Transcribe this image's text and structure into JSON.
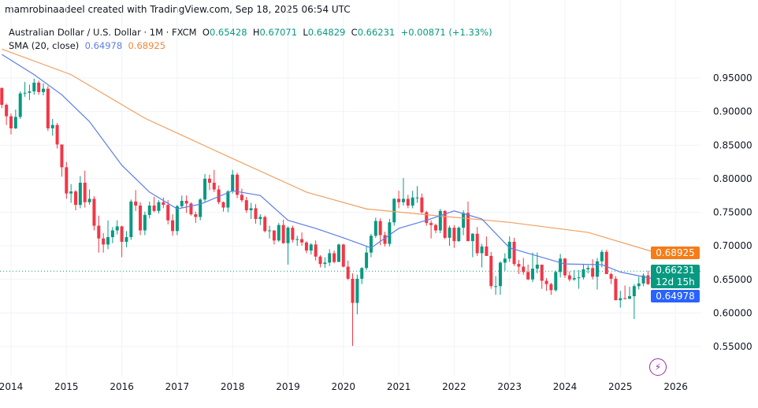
{
  "credit": "mamrobinaadeel created with TradingView.com, Sep 18, 2025 06:54 UTC",
  "legend": {
    "symbol": "Australian Dollar / U.S. Dollar · 1M · FXCM",
    "o_label": "O",
    "o": "0.65428",
    "h_label": "H",
    "h": "0.67071",
    "l_label": "L",
    "l": "0.64829",
    "c_label": "C",
    "c": "0.66231",
    "change": "+0.00871 (+1.33%)",
    "sma_label": "SMA (20, close)",
    "sma_blue": "0.64978",
    "sma_orange": "0.68925"
  },
  "badges": {
    "orange": "0.68925",
    "price": "0.66231",
    "countdown": "12d 15h",
    "blue": "0.64978"
  },
  "colors": {
    "up": "#089981",
    "down": "#f23645",
    "sma_blue": "#5b7fe6",
    "sma_orange": "#f0a060",
    "price_badge": "#089981",
    "orange_badge": "#f57c17",
    "blue_badge": "#2962ff",
    "accent": "#9c27b0"
  },
  "icons": {
    "bolt": "lightning-icon"
  },
  "chart_data": {
    "type": "candlestick",
    "interval": "1M",
    "ylim": [
      0.53,
      0.99
    ],
    "yticks": [
      "0.95000",
      "0.90000",
      "0.85000",
      "0.80000",
      "0.75000",
      "0.70000",
      "0.65000",
      "0.60000",
      "0.55000"
    ],
    "xticks": [
      "2014",
      "2015",
      "2016",
      "2017",
      "2018",
      "2019",
      "2020",
      "2021",
      "2022",
      "2023",
      "2024",
      "2025",
      "2026"
    ],
    "start": "2013-11",
    "first_open": 0.935,
    "candles_hlc": [
      [
        0.936,
        0.905,
        0.91
      ],
      [
        0.912,
        0.88,
        0.893
      ],
      [
        0.897,
        0.866,
        0.875
      ],
      [
        0.903,
        0.874,
        0.892
      ],
      [
        0.93,
        0.889,
        0.927
      ],
      [
        0.944,
        0.922,
        0.928
      ],
      [
        0.94,
        0.917,
        0.93
      ],
      [
        0.949,
        0.925,
        0.943
      ],
      [
        0.946,
        0.925,
        0.929
      ],
      [
        0.942,
        0.924,
        0.934
      ],
      [
        0.938,
        0.871,
        0.875
      ],
      [
        0.889,
        0.864,
        0.88
      ],
      [
        0.883,
        0.845,
        0.851
      ],
      [
        0.837,
        0.803,
        0.817
      ],
      [
        0.825,
        0.77,
        0.778
      ],
      [
        0.792,
        0.764,
        0.781
      ],
      [
        0.783,
        0.753,
        0.761
      ],
      [
        0.804,
        0.756,
        0.794
      ],
      [
        0.812,
        0.757,
        0.765
      ],
      [
        0.784,
        0.761,
        0.77
      ],
      [
        0.774,
        0.723,
        0.73
      ],
      [
        0.745,
        0.69,
        0.711
      ],
      [
        0.719,
        0.69,
        0.702
      ],
      [
        0.738,
        0.695,
        0.713
      ],
      [
        0.728,
        0.704,
        0.723
      ],
      [
        0.738,
        0.717,
        0.729
      ],
      [
        0.73,
        0.683,
        0.706
      ],
      [
        0.722,
        0.698,
        0.713
      ],
      [
        0.769,
        0.709,
        0.766
      ],
      [
        0.783,
        0.752,
        0.76
      ],
      [
        0.765,
        0.716,
        0.723
      ],
      [
        0.751,
        0.716,
        0.746
      ],
      [
        0.766,
        0.741,
        0.76
      ],
      [
        0.773,
        0.75,
        0.752
      ],
      [
        0.768,
        0.748,
        0.765
      ],
      [
        0.772,
        0.756,
        0.761
      ],
      [
        0.768,
        0.732,
        0.738
      ],
      [
        0.747,
        0.715,
        0.722
      ],
      [
        0.761,
        0.716,
        0.759
      ],
      [
        0.775,
        0.756,
        0.767
      ],
      [
        0.775,
        0.749,
        0.763
      ],
      [
        0.765,
        0.745,
        0.747
      ],
      [
        0.751,
        0.734,
        0.743
      ],
      [
        0.771,
        0.738,
        0.769
      ],
      [
        0.807,
        0.764,
        0.8
      ],
      [
        0.806,
        0.783,
        0.794
      ],
      [
        0.813,
        0.78,
        0.784
      ],
      [
        0.79,
        0.762,
        0.765
      ],
      [
        0.766,
        0.751,
        0.757
      ],
      [
        0.783,
        0.75,
        0.781
      ],
      [
        0.813,
        0.778,
        0.806
      ],
      [
        0.809,
        0.771,
        0.776
      ],
      [
        0.785,
        0.765,
        0.768
      ],
      [
        0.773,
        0.749,
        0.753
      ],
      [
        0.764,
        0.74,
        0.756
      ],
      [
        0.762,
        0.733,
        0.74
      ],
      [
        0.747,
        0.731,
        0.743
      ],
      [
        0.745,
        0.72,
        0.722
      ],
      [
        0.73,
        0.711,
        0.723
      ],
      [
        0.722,
        0.702,
        0.708
      ],
      [
        0.734,
        0.706,
        0.731
      ],
      [
        0.739,
        0.703,
        0.704
      ],
      [
        0.729,
        0.672,
        0.727
      ],
      [
        0.73,
        0.705,
        0.709
      ],
      [
        0.715,
        0.7,
        0.71
      ],
      [
        0.72,
        0.7,
        0.705
      ],
      [
        0.707,
        0.689,
        0.693
      ],
      [
        0.704,
        0.687,
        0.702
      ],
      [
        0.708,
        0.678,
        0.684
      ],
      [
        0.686,
        0.668,
        0.673
      ],
      [
        0.683,
        0.667,
        0.675
      ],
      [
        0.695,
        0.67,
        0.689
      ],
      [
        0.693,
        0.674,
        0.676
      ],
      [
        0.703,
        0.676,
        0.702
      ],
      [
        0.703,
        0.668,
        0.669
      ],
      [
        0.678,
        0.649,
        0.651
      ],
      [
        0.659,
        0.551,
        0.615
      ],
      [
        0.657,
        0.598,
        0.651
      ],
      [
        0.668,
        0.643,
        0.667
      ],
      [
        0.7,
        0.664,
        0.69
      ],
      [
        0.718,
        0.683,
        0.715
      ],
      [
        0.742,
        0.712,
        0.737
      ],
      [
        0.741,
        0.701,
        0.716
      ],
      [
        0.721,
        0.699,
        0.703
      ],
      [
        0.74,
        0.699,
        0.735
      ],
      [
        0.771,
        0.73,
        0.77
      ],
      [
        0.782,
        0.756,
        0.765
      ],
      [
        0.801,
        0.76,
        0.77
      ],
      [
        0.776,
        0.756,
        0.76
      ],
      [
        0.782,
        0.756,
        0.772
      ],
      [
        0.789,
        0.764,
        0.772
      ],
      [
        0.778,
        0.748,
        0.75
      ],
      [
        0.752,
        0.73,
        0.734
      ],
      [
        0.738,
        0.711,
        0.731
      ],
      [
        0.733,
        0.719,
        0.723
      ],
      [
        0.755,
        0.719,
        0.752
      ],
      [
        0.753,
        0.71,
        0.712
      ],
      [
        0.73,
        0.7,
        0.727
      ],
      [
        0.731,
        0.697,
        0.707
      ],
      [
        0.729,
        0.706,
        0.727
      ],
      [
        0.753,
        0.716,
        0.749
      ],
      [
        0.766,
        0.707,
        0.707
      ],
      [
        0.719,
        0.683,
        0.718
      ],
      [
        0.728,
        0.685,
        0.689
      ],
      [
        0.703,
        0.668,
        0.699
      ],
      [
        0.714,
        0.685,
        0.685
      ],
      [
        0.691,
        0.636,
        0.64
      ],
      [
        0.655,
        0.627,
        0.64
      ],
      [
        0.677,
        0.627,
        0.675
      ],
      [
        0.689,
        0.663,
        0.681
      ],
      [
        0.714,
        0.676,
        0.706
      ],
      [
        0.712,
        0.67,
        0.673
      ],
      [
        0.679,
        0.658,
        0.669
      ],
      [
        0.682,
        0.657,
        0.661
      ],
      [
        0.672,
        0.649,
        0.65
      ],
      [
        0.69,
        0.646,
        0.666
      ],
      [
        0.69,
        0.659,
        0.672
      ],
      [
        0.672,
        0.636,
        0.648
      ],
      [
        0.652,
        0.633,
        0.643
      ],
      [
        0.645,
        0.627,
        0.634
      ],
      [
        0.663,
        0.632,
        0.661
      ],
      [
        0.688,
        0.653,
        0.681
      ],
      [
        0.682,
        0.652,
        0.656
      ],
      [
        0.662,
        0.647,
        0.65
      ],
      [
        0.664,
        0.648,
        0.652
      ],
      [
        0.664,
        0.636,
        0.653
      ],
      [
        0.672,
        0.65,
        0.665
      ],
      [
        0.671,
        0.659,
        0.667
      ],
      [
        0.68,
        0.65,
        0.654
      ],
      [
        0.682,
        0.635,
        0.677
      ],
      [
        0.694,
        0.668,
        0.691
      ],
      [
        0.694,
        0.658,
        0.658
      ],
      [
        0.66,
        0.643,
        0.651
      ],
      [
        0.655,
        0.619,
        0.619
      ],
      [
        0.633,
        0.608,
        0.622
      ],
      [
        0.641,
        0.62,
        0.621
      ],
      [
        0.639,
        0.621,
        0.625
      ],
      [
        0.643,
        0.591,
        0.64
      ],
      [
        0.654,
        0.635,
        0.644
      ],
      [
        0.659,
        0.64,
        0.656
      ],
      [
        0.663,
        0.642,
        0.643
      ],
      [
        0.656,
        0.641,
        0.654
      ],
      [
        0.6707,
        0.6483,
        0.6623
      ]
    ],
    "sma_blue_points": [
      [
        "2013-11",
        0.985
      ],
      [
        "2014-06",
        0.955
      ],
      [
        "2014-12",
        0.925
      ],
      [
        "2015-06",
        0.885
      ],
      [
        "2016-01",
        0.82
      ],
      [
        "2016-07",
        0.78
      ],
      [
        "2017-01",
        0.755
      ],
      [
        "2017-06",
        0.762
      ],
      [
        "2018-01",
        0.782
      ],
      [
        "2018-07",
        0.775
      ],
      [
        "2019-01",
        0.738
      ],
      [
        "2019-07",
        0.726
      ],
      [
        "2020-01",
        0.712
      ],
      [
        "2020-07",
        0.697
      ],
      [
        "2021-01",
        0.726
      ],
      [
        "2021-07",
        0.738
      ],
      [
        "2022-01",
        0.752
      ],
      [
        "2022-07",
        0.74
      ],
      [
        "2023-01",
        0.697
      ],
      [
        "2023-07",
        0.685
      ],
      [
        "2024-01",
        0.673
      ],
      [
        "2024-09",
        0.672
      ],
      [
        "2025-01",
        0.661
      ],
      [
        "2025-09",
        0.6498
      ]
    ],
    "sma_orange_points": [
      [
        "2013-11",
        0.993
      ],
      [
        "2015-02",
        0.955
      ],
      [
        "2016-06",
        0.89
      ],
      [
        "2018-01",
        0.83
      ],
      [
        "2019-05",
        0.78
      ],
      [
        "2020-06",
        0.755
      ],
      [
        "2021-09",
        0.745
      ],
      [
        "2023-01",
        0.735
      ],
      [
        "2024-06",
        0.72
      ],
      [
        "2025-09",
        0.6893
      ]
    ]
  }
}
